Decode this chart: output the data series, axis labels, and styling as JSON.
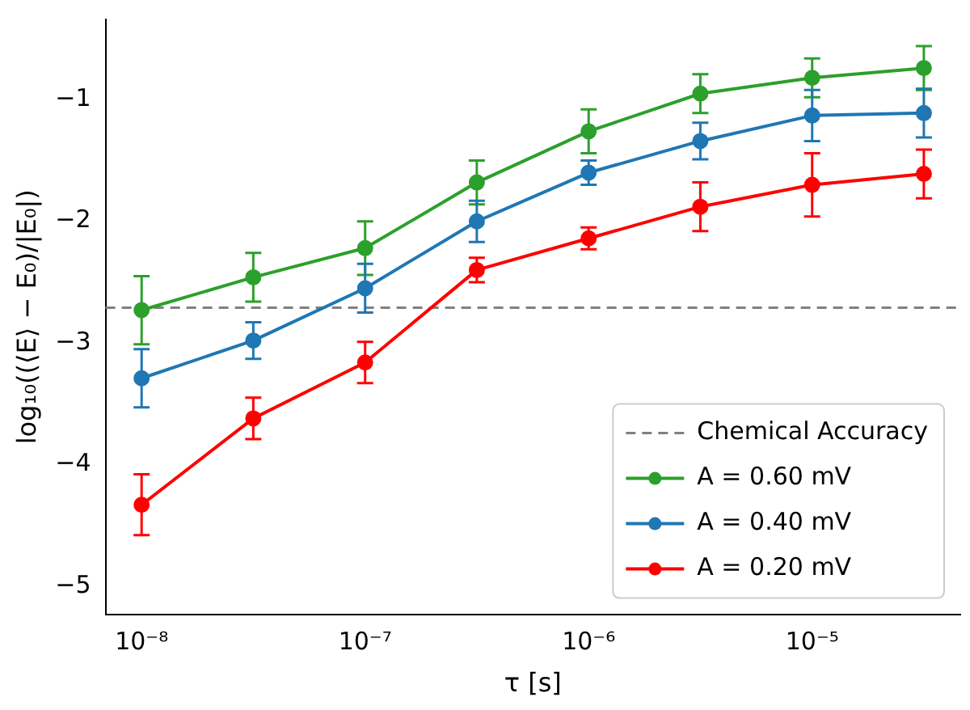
{
  "chart_data": {
    "type": "line",
    "xlabel": "τ [s]",
    "ylabel": "log₁₀((⟨E⟩ − E₀)/|E₀|)",
    "x": [
      1e-08,
      3.16e-08,
      1e-07,
      3.16e-07,
      1e-06,
      3.16e-06,
      1e-05,
      3.16e-05
    ],
    "log": "x",
    "xlim": [
      6.9e-09,
      4.6e-05
    ],
    "xticks": [
      {
        "value": 1e-08,
        "label": "10⁻⁸"
      },
      {
        "value": 1e-07,
        "label": "10⁻⁷"
      },
      {
        "value": 1e-06,
        "label": "10⁻⁶"
      },
      {
        "value": 1e-05,
        "label": "10⁻⁵"
      }
    ],
    "ylim": [
      -5.23,
      -0.34
    ],
    "yticks": [
      {
        "value": -5,
        "label": "−5"
      },
      {
        "value": -4,
        "label": "−4"
      },
      {
        "value": -3,
        "label": "−3"
      },
      {
        "value": -2,
        "label": "−2"
      },
      {
        "value": -1,
        "label": "−1"
      }
    ],
    "marker": "circle",
    "grid": false,
    "legend": "bottom right",
    "ref_lines": [
      {
        "axis": "y",
        "value": -2.71,
        "label": "Chemical Accuracy",
        "color": "#808080",
        "line_style": "dashed"
      }
    ],
    "series": [
      {
        "name": "A = 0.60 mV",
        "color": "#2ca02c",
        "values": [
          -2.73,
          -2.46,
          -2.22,
          -1.68,
          -1.26,
          -0.95,
          -0.82,
          -0.74
        ],
        "errors": [
          0.28,
          0.2,
          0.22,
          0.18,
          0.18,
          0.16,
          0.16,
          0.18
        ]
      },
      {
        "name": "A = 0.40 mV",
        "color": "#1f77b4",
        "values": [
          -3.29,
          -2.98,
          -2.55,
          -2.0,
          -1.6,
          -1.34,
          -1.13,
          -1.11
        ],
        "errors": [
          0.24,
          0.15,
          0.2,
          0.17,
          0.1,
          0.15,
          0.21,
          0.2
        ]
      },
      {
        "name": "A = 0.20 mV",
        "color": "#ff0000",
        "values": [
          -4.33,
          -3.62,
          -3.16,
          -2.4,
          -2.14,
          -1.88,
          -1.7,
          -1.61
        ],
        "errors": [
          0.25,
          0.17,
          0.17,
          0.1,
          0.09,
          0.2,
          0.26,
          0.2
        ]
      }
    ]
  }
}
